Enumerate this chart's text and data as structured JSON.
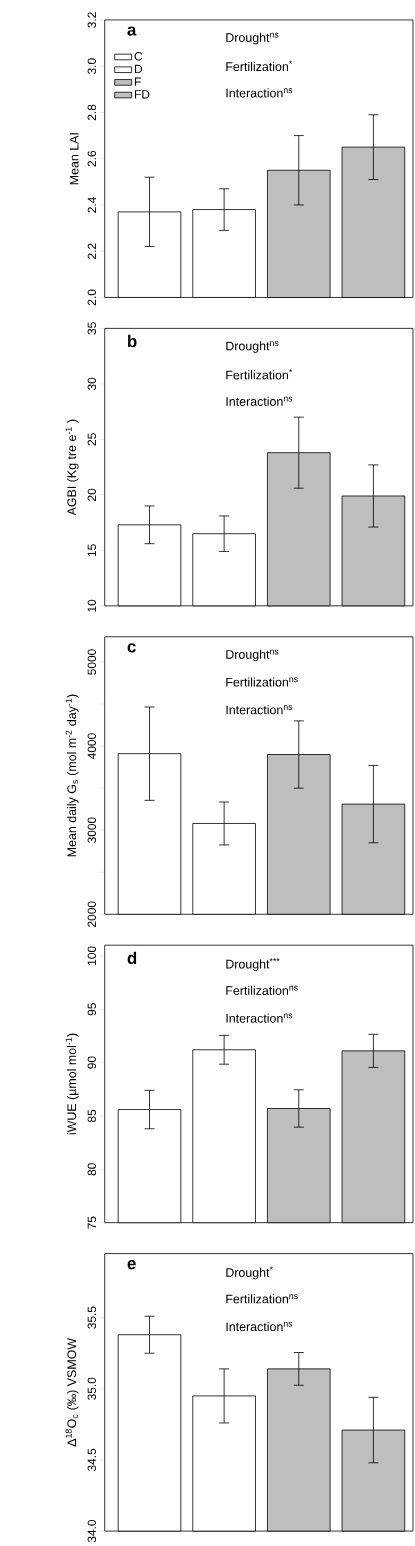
{
  "chart_data": [
    {
      "type": "bar",
      "title": "a",
      "ylabel": "Mean LAI",
      "annotations": [
        "Drought$^{ns}$",
        "Fertilization$^{*}$",
        "Interaction$^{ns}$"
      ],
      "categories": [
        null
      ],
      "legend": "top left",
      "tick_labels": "y",
      "ylim": [
        2.0,
        3.2
      ],
      "yticks": [
        {
          "value": 2.0,
          "label": "2.0"
        },
        {
          "value": 2.2,
          "label": "2.2"
        },
        {
          "value": 2.4,
          "label": "2.4"
        },
        {
          "value": 2.6,
          "label": "2.6"
        },
        {
          "value": 2.8,
          "label": "2.8"
        },
        {
          "value": 3.0,
          "label": "3.0"
        },
        {
          "value": 3.2,
          "label": "3.2"
        }
      ],
      "series": [
        {
          "name": "C",
          "color": "#ffffff",
          "values": [
            2.37
          ],
          "errors": [
            0.15
          ]
        },
        {
          "name": "D",
          "color": "#ffffff",
          "values": [
            2.38
          ],
          "errors": [
            0.09
          ]
        },
        {
          "name": "F",
          "color": "#bebebe",
          "values": [
            2.55
          ],
          "errors": [
            0.15
          ]
        },
        {
          "name": "FD",
          "color": "#bebebe",
          "values": [
            2.65
          ],
          "errors": [
            0.14
          ]
        }
      ]
    },
    {
      "type": "bar",
      "title": "b",
      "ylabel": "AGBI (Kg tre e$^{-1}$ )",
      "annotations": [
        "Drought$^{ns}$",
        "Fertilization$^{*}$",
        "Interaction$^{ns}$"
      ],
      "categories": [
        null
      ],
      "tick_labels": "y",
      "ylim": [
        10,
        35
      ],
      "yticks": [
        10,
        15,
        20,
        25,
        30,
        35
      ],
      "series": [
        {
          "color": "#ffffff",
          "values": [
            17.3
          ],
          "errors": [
            1.7
          ]
        },
        {
          "color": "#ffffff",
          "values": [
            16.5
          ],
          "errors": [
            1.6
          ]
        },
        {
          "color": "#bebebe",
          "values": [
            23.8
          ],
          "errors": [
            3.2
          ]
        },
        {
          "color": "#bebebe",
          "values": [
            19.9
          ],
          "errors": [
            2.8
          ]
        }
      ]
    },
    {
      "type": "bar",
      "title": "c",
      "ylabel": "Mean daily G$_{s}$ (mol m$^{-2}$ day$^{-1}$)",
      "annotations": [
        "Drought$^{ns}$",
        "Fertilization$^{ns}$",
        "Interaction$^{ns}$"
      ],
      "categories": [
        null
      ],
      "tick_labels": "y",
      "ylim": [
        2000,
        5300
      ],
      "yticks": [
        2000,
        {
          "value": 2500,
          "label": null
        },
        3000,
        {
          "value": 3500,
          "label": null
        },
        4000,
        {
          "value": 4500,
          "label": null
        },
        5000
      ],
      "series": [
        {
          "color": "#ffffff",
          "values": [
            3910
          ],
          "errors": [
            555
          ]
        },
        {
          "color": "#ffffff",
          "values": [
            3080
          ],
          "errors": [
            255
          ]
        },
        {
          "color": "#bebebe",
          "values": [
            3900
          ],
          "errors": [
            400
          ]
        },
        {
          "color": "#bebebe",
          "values": [
            3310
          ],
          "errors": [
            460
          ]
        }
      ]
    },
    {
      "type": "bar",
      "title": "d",
      "ylabel": "iWUE (µmol mol$^{-1}$)",
      "annotations": [
        "Drought$^{***}$",
        "Fertilization$^{ns}$",
        "Interaction$^{ns}$"
      ],
      "categories": [
        null
      ],
      "tick_labels": "y",
      "ylim": [
        75,
        101
      ],
      "yticks": [
        75,
        80,
        85,
        90,
        95,
        100
      ],
      "series": [
        {
          "color": "#ffffff",
          "values": [
            85.6
          ],
          "errors": [
            1.8
          ]
        },
        {
          "color": "#ffffff",
          "values": [
            91.2
          ],
          "errors": [
            1.35
          ]
        },
        {
          "color": "#bebebe",
          "values": [
            85.7
          ],
          "errors": [
            1.75
          ]
        },
        {
          "color": "#bebebe",
          "values": [
            91.1
          ],
          "errors": [
            1.55
          ]
        }
      ]
    },
    {
      "type": "bar",
      "title": "e",
      "ylabel": "Δ$^{18}$O$_{c}$ (‰) VSMOW",
      "annotations": [
        "Drought$^{*}$",
        "Fertilization$^{ns}$",
        "Interaction$^{ns}$"
      ],
      "categories": [
        null
      ],
      "tick_labels": "y",
      "ylim": [
        34.0,
        35.95
      ],
      "yticks": [
        {
          "value": 34.0,
          "label": "34.0"
        },
        {
          "value": 34.5,
          "label": "34.5"
        },
        {
          "value": 35.0,
          "label": "35.0"
        },
        {
          "value": 35.5,
          "label": "35.5"
        }
      ],
      "series": [
        {
          "color": "#ffffff",
          "values": [
            35.38
          ],
          "errors": [
            0.13
          ]
        },
        {
          "color": "#ffffff",
          "values": [
            34.95
          ],
          "errors": [
            0.19
          ]
        },
        {
          "color": "#bebebe",
          "values": [
            35.14
          ],
          "errors": [
            0.115
          ]
        },
        {
          "color": "#bebebe",
          "values": [
            34.71
          ],
          "errors": [
            0.23
          ]
        }
      ]
    }
  ]
}
